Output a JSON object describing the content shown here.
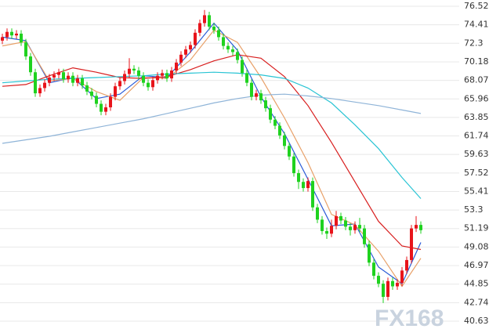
{
  "chart_data": {
    "type": "candlestick",
    "ylim": [
      40.63,
      76.52
    ],
    "yticks": [
      76.52,
      74.41,
      72.3,
      70.18,
      68.07,
      65.96,
      63.85,
      61.74,
      59.63,
      57.52,
      55.41,
      53.3,
      51.19,
      49.08,
      46.97,
      44.85,
      42.74,
      40.63
    ],
    "grid": true,
    "up_color": "#e8141b",
    "down_color": "#1fd21f",
    "watermark": "FX168",
    "ohlc": [
      [
        72.6,
        73.4,
        72.2,
        73.0
      ],
      [
        73.0,
        74.0,
        72.6,
        73.6
      ],
      [
        73.6,
        74.0,
        72.8,
        73.2
      ],
      [
        73.2,
        73.8,
        72.8,
        73.4
      ],
      [
        73.4,
        73.8,
        72.0,
        72.4
      ],
      [
        72.4,
        72.8,
        70.4,
        70.8
      ],
      [
        70.8,
        71.2,
        68.6,
        69.0
      ],
      [
        69.0,
        69.4,
        66.2,
        66.6
      ],
      [
        66.6,
        67.6,
        66.2,
        67.2
      ],
      [
        67.2,
        68.2,
        66.8,
        67.8
      ],
      [
        67.8,
        68.8,
        67.4,
        68.4
      ],
      [
        68.4,
        69.1,
        68.0,
        68.7
      ],
      [
        68.7,
        69.4,
        68.3,
        69.0
      ],
      [
        69.0,
        69.4,
        67.8,
        68.2
      ],
      [
        68.2,
        69.0,
        67.8,
        68.6
      ],
      [
        68.6,
        69.0,
        67.4,
        67.8
      ],
      [
        67.8,
        68.7,
        67.4,
        68.3
      ],
      [
        68.3,
        68.7,
        67.1,
        67.5
      ],
      [
        67.5,
        67.9,
        66.4,
        66.8
      ],
      [
        66.8,
        67.2,
        65.9,
        66.3
      ],
      [
        66.3,
        66.7,
        65.0,
        65.4
      ],
      [
        65.4,
        65.8,
        64.1,
        64.5
      ],
      [
        64.5,
        65.4,
        64.1,
        65.0
      ],
      [
        65.0,
        66.6,
        64.6,
        66.2
      ],
      [
        66.2,
        67.8,
        65.8,
        67.4
      ],
      [
        67.4,
        68.4,
        67.0,
        68.0
      ],
      [
        68.0,
        69.2,
        67.6,
        68.8
      ],
      [
        68.8,
        70.6,
        68.4,
        69.4
      ],
      [
        69.4,
        69.8,
        68.8,
        69.2
      ],
      [
        69.2,
        69.6,
        68.2,
        68.6
      ],
      [
        68.6,
        69.0,
        67.4,
        67.8
      ],
      [
        67.8,
        68.2,
        66.9,
        67.3
      ],
      [
        67.3,
        68.5,
        66.9,
        68.1
      ],
      [
        68.1,
        69.0,
        67.7,
        68.6
      ],
      [
        68.6,
        69.3,
        68.2,
        68.9
      ],
      [
        68.9,
        69.3,
        67.9,
        68.3
      ],
      [
        68.3,
        69.6,
        67.9,
        69.2
      ],
      [
        69.2,
        70.5,
        68.8,
        70.1
      ],
      [
        70.1,
        71.4,
        69.7,
        71.0
      ],
      [
        71.0,
        72.0,
        70.6,
        71.6
      ],
      [
        71.6,
        72.5,
        71.2,
        72.1
      ],
      [
        72.1,
        73.9,
        71.7,
        73.5
      ],
      [
        73.5,
        75.0,
        73.1,
        74.6
      ],
      [
        74.6,
        76.1,
        74.2,
        75.5
      ],
      [
        75.5,
        75.9,
        73.8,
        74.2
      ],
      [
        74.2,
        74.6,
        73.4,
        73.8
      ],
      [
        73.8,
        74.2,
        72.6,
        73.0
      ],
      [
        73.0,
        73.4,
        71.6,
        72.0
      ],
      [
        72.0,
        72.4,
        71.2,
        71.6
      ],
      [
        71.6,
        72.0,
        70.9,
        71.3
      ],
      [
        71.3,
        71.7,
        70.0,
        70.4
      ],
      [
        70.4,
        70.8,
        68.5,
        68.9
      ],
      [
        68.9,
        69.3,
        67.4,
        67.8
      ],
      [
        67.8,
        68.2,
        65.8,
        66.2
      ],
      [
        66.2,
        67.0,
        65.8,
        66.6
      ],
      [
        66.6,
        67.0,
        65.4,
        65.8
      ],
      [
        65.8,
        66.2,
        64.5,
        64.9
      ],
      [
        64.9,
        65.3,
        63.2,
        63.6
      ],
      [
        63.6,
        64.0,
        62.5,
        62.9
      ],
      [
        62.9,
        63.3,
        61.4,
        61.8
      ],
      [
        61.8,
        62.2,
        60.2,
        60.6
      ],
      [
        60.6,
        61.0,
        59.0,
        59.4
      ],
      [
        59.4,
        59.8,
        57.1,
        57.5
      ],
      [
        57.5,
        57.9,
        55.7,
        56.5
      ],
      [
        56.5,
        56.9,
        55.4,
        55.8
      ],
      [
        55.8,
        57.0,
        55.4,
        56.6
      ],
      [
        56.6,
        57.0,
        53.2,
        53.6
      ],
      [
        53.6,
        54.0,
        51.8,
        52.2
      ],
      [
        52.2,
        52.6,
        50.5,
        50.9
      ],
      [
        50.9,
        51.3,
        50.0,
        50.6
      ],
      [
        50.6,
        52.2,
        50.2,
        51.5
      ],
      [
        51.5,
        53.2,
        51.1,
        52.6
      ],
      [
        52.6,
        53.0,
        51.7,
        52.1
      ],
      [
        52.1,
        52.5,
        51.0,
        51.4
      ],
      [
        51.4,
        51.8,
        50.4,
        51.0
      ],
      [
        51.0,
        52.0,
        50.6,
        51.6
      ],
      [
        51.6,
        52.4,
        50.8,
        51.2
      ],
      [
        51.2,
        51.6,
        49.0,
        49.4
      ],
      [
        49.4,
        49.8,
        46.9,
        47.3
      ],
      [
        47.3,
        47.7,
        45.4,
        45.8
      ],
      [
        45.8,
        46.2,
        44.5,
        44.9
      ],
      [
        44.9,
        45.3,
        42.7,
        43.4
      ],
      [
        43.4,
        45.6,
        43.0,
        45.2
      ],
      [
        45.2,
        45.6,
        44.2,
        44.6
      ],
      [
        44.6,
        45.4,
        44.2,
        45.0
      ],
      [
        45.0,
        46.8,
        44.6,
        46.4
      ],
      [
        46.4,
        48.0,
        46.0,
        47.6
      ],
      [
        47.6,
        51.6,
        47.2,
        51.2
      ],
      [
        51.2,
        52.6,
        50.8,
        51.6
      ],
      [
        51.6,
        52.0,
        50.6,
        51.0
      ]
    ],
    "series": [
      {
        "color": "#2a5bd7",
        "x": [
          0,
          5,
          10,
          15,
          20,
          25,
          30,
          35,
          40,
          45,
          50,
          55,
          60,
          65,
          70,
          75,
          80,
          85,
          89
        ],
        "values": [
          73.0,
          72.6,
          67.8,
          68.4,
          66.0,
          66.5,
          68.6,
          68.4,
          71.3,
          74.6,
          71.5,
          66.2,
          62.0,
          56.8,
          51.5,
          51.7,
          46.8,
          44.9,
          49.6
        ]
      },
      {
        "color": "#e8a068",
        "x": [
          0,
          5,
          10,
          15,
          20,
          25,
          30,
          35,
          40,
          45,
          50,
          55,
          60,
          65,
          70,
          75,
          80,
          85,
          89
        ],
        "values": [
          72.0,
          72.5,
          68.0,
          68.3,
          66.8,
          65.8,
          68.4,
          68.3,
          70.4,
          73.8,
          72.4,
          68.4,
          63.8,
          58.7,
          52.8,
          51.6,
          48.6,
          44.6,
          47.8
        ]
      },
      {
        "color": "#d81e1e",
        "x": [
          0,
          5,
          10,
          15,
          20,
          25,
          30,
          35,
          40,
          45,
          50,
          55,
          60,
          65,
          70,
          75,
          80,
          85,
          89
        ],
        "values": [
          67.4,
          67.6,
          68.6,
          69.5,
          69.0,
          68.4,
          68.3,
          68.5,
          69.3,
          70.3,
          71.0,
          70.6,
          68.5,
          65.2,
          61.0,
          56.5,
          52.0,
          49.2,
          48.8
        ]
      },
      {
        "color": "#29c4d4",
        "x": [
          0,
          5,
          10,
          15,
          20,
          25,
          30,
          35,
          40,
          45,
          50,
          55,
          60,
          65,
          70,
          75,
          80,
          85,
          89
        ],
        "values": [
          67.8,
          68.0,
          68.2,
          68.3,
          68.4,
          68.5,
          68.6,
          68.8,
          68.9,
          69.0,
          68.9,
          68.7,
          68.3,
          67.2,
          65.5,
          63.0,
          60.3,
          57.0,
          54.6
        ]
      },
      {
        "color": "#8fb4d8",
        "x": [
          0,
          5,
          10,
          15,
          20,
          25,
          30,
          35,
          40,
          45,
          50,
          55,
          60,
          65,
          70,
          75,
          80,
          85,
          89
        ],
        "values": [
          60.9,
          61.3,
          61.7,
          62.2,
          62.7,
          63.2,
          63.7,
          64.3,
          64.9,
          65.5,
          66.0,
          66.4,
          66.5,
          66.3,
          66.0,
          65.6,
          65.2,
          64.7,
          64.3
        ]
      }
    ]
  }
}
